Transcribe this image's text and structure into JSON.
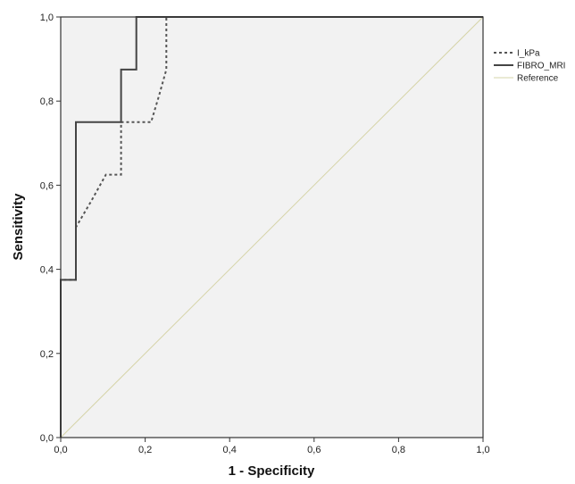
{
  "chart_data": {
    "type": "line",
    "title": "",
    "xlabel": "1 - Specificity",
    "ylabel": "Sensitivity",
    "xlim": [
      0,
      1
    ],
    "ylim": [
      0,
      1
    ],
    "xticks": [
      "0,0",
      "0,2",
      "0,4",
      "0,6",
      "0,8",
      "1,0"
    ],
    "yticks": [
      "0,0",
      "0,2",
      "0,4",
      "0,6",
      "0,8",
      "1,0"
    ],
    "grid": false,
    "legend_position": "right",
    "colors": {
      "plot_background": "#f2f2f2",
      "frame": "#333333",
      "reference": "#d6d4a8"
    },
    "series": [
      {
        "name": "I_kPa",
        "style": "dotted",
        "color": "#555555",
        "x": [
          0,
          0,
          0.036,
          0.036,
          0.071,
          0.107,
          0.143,
          0.143,
          0.214,
          0.232,
          0.25,
          0.25,
          1
        ],
        "y": [
          0,
          0.375,
          0.375,
          0.5,
          0.56,
          0.625,
          0.625,
          0.75,
          0.75,
          0.81,
          0.875,
          1,
          1
        ]
      },
      {
        "name": "FIBRO_MRI",
        "style": "solid",
        "color": "#444444",
        "x": [
          0,
          0,
          0.036,
          0.036,
          0.143,
          0.143,
          0.179,
          0.179,
          1
        ],
        "y": [
          0,
          0.375,
          0.375,
          0.75,
          0.75,
          0.875,
          0.875,
          1,
          1
        ]
      },
      {
        "name": "Reference",
        "style": "solid",
        "color": "#d6d4a8",
        "x": [
          0,
          1
        ],
        "y": [
          0,
          1
        ]
      }
    ]
  }
}
